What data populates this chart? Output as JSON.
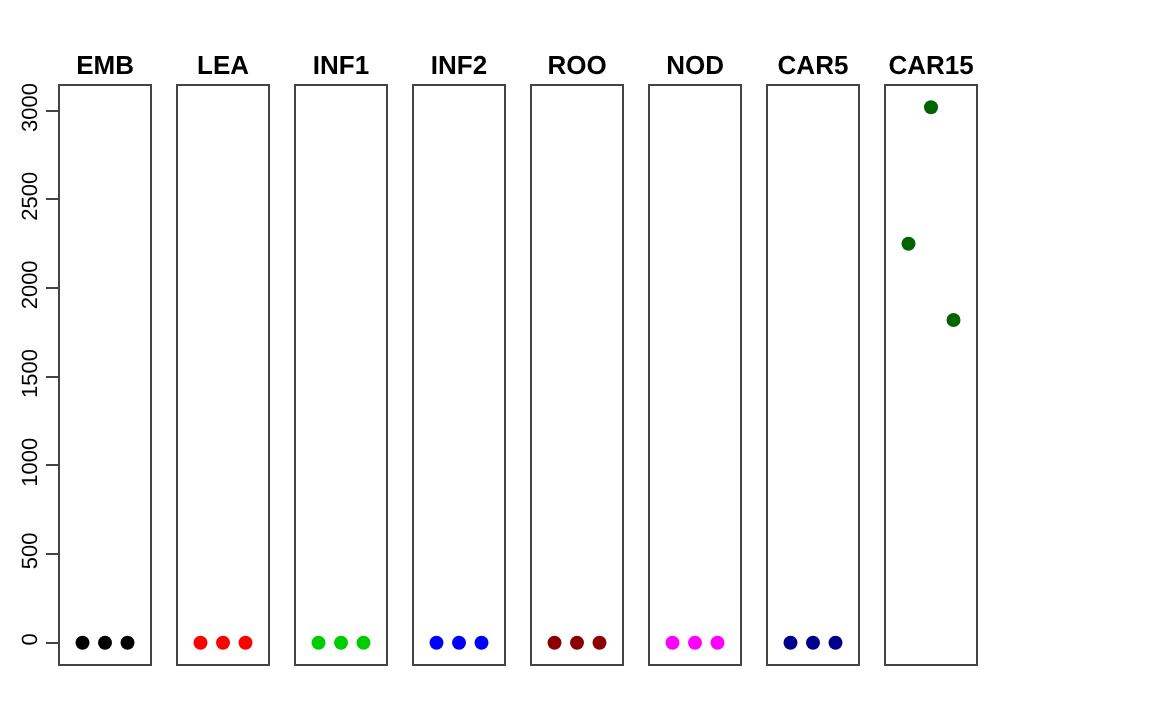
{
  "chart_data": {
    "type": "scatter",
    "categories": [
      "EMB",
      "LEA",
      "INF1",
      "INF2",
      "ROO",
      "NOD",
      "CAR5",
      "CAR15"
    ],
    "ylim": [
      -120,
      3140
    ],
    "yticks": [
      0,
      500,
      1000,
      1500,
      2000,
      2500,
      3000
    ],
    "marker": "circle",
    "series": [
      {
        "colors": [
          "#000000",
          "#ff0000",
          "#00cd00",
          "#0000ff",
          "#8b0000",
          "#ff00ff",
          "#00008b",
          "#006400"
        ],
        "values": [
          0,
          0,
          0,
          0,
          0,
          0,
          0,
          2250
        ]
      },
      {
        "colors": [
          "#000000",
          "#ff0000",
          "#00cd00",
          "#0000ff",
          "#8b0000",
          "#ff00ff",
          "#00008b",
          "#006400"
        ],
        "values": [
          0,
          0,
          0,
          0,
          0,
          0,
          0,
          3020
        ]
      },
      {
        "colors": [
          "#000000",
          "#ff0000",
          "#00cd00",
          "#0000ff",
          "#8b0000",
          "#ff00ff",
          "#00008b",
          "#006400"
        ],
        "values": [
          0,
          0,
          0,
          0,
          0,
          0,
          0,
          1820
        ]
      }
    ]
  }
}
